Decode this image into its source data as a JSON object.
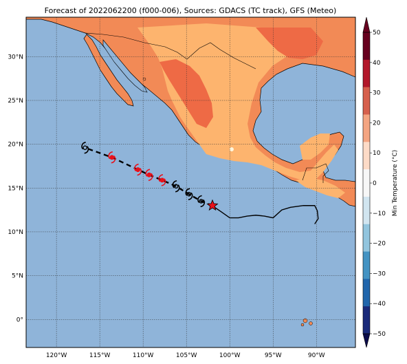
{
  "title": "Forecast of 2022062200 (f000-006), Sources: GDACS (TC track), GFS (Meteo)",
  "map": {
    "lon_range": [
      -123.5,
      -85.5
    ],
    "lat_range": [
      -3.2,
      34.5
    ],
    "lon_ticks": [
      {
        "value": -120,
        "label": "120°W"
      },
      {
        "value": -115,
        "label": "115°W"
      },
      {
        "value": -110,
        "label": "110°W"
      },
      {
        "value": -105,
        "label": "105°W"
      },
      {
        "value": -100,
        "label": "100°W"
      },
      {
        "value": -95,
        "label": "95°W"
      },
      {
        "value": -90,
        "label": "90°W"
      }
    ],
    "lat_ticks": [
      {
        "value": 30,
        "label": "30°N"
      },
      {
        "value": 25,
        "label": "25°N"
      },
      {
        "value": 20,
        "label": "20°N"
      },
      {
        "value": 15,
        "label": "15°N"
      },
      {
        "value": 10,
        "label": "10°N"
      },
      {
        "value": 5,
        "label": "5°N"
      },
      {
        "value": 0,
        "label": "0°"
      }
    ],
    "gridlines": true,
    "ocean_color": "#8fb4d9",
    "land_color": "#f4a261"
  },
  "track": {
    "past_path_lonlat": [
      [
        -101.9,
        12.9
      ],
      [
        -101.0,
        12.3
      ],
      [
        -100.0,
        11.6
      ],
      [
        -99.0,
        11.6
      ],
      [
        -98.0,
        11.8
      ],
      [
        -97.0,
        11.9
      ],
      [
        -96.0,
        11.8
      ],
      [
        -95.0,
        11.6
      ],
      [
        -94.0,
        12.5
      ],
      [
        -93.0,
        12.8
      ],
      [
        -91.5,
        13.0
      ],
      [
        -90.2,
        13.0
      ],
      [
        -89.9,
        12.4
      ],
      [
        -89.8,
        11.5
      ],
      [
        -90.2,
        10.9
      ]
    ],
    "current_position": [
      -102.0,
      13.0
    ],
    "forecast_positions": [
      {
        "lon": -103.3,
        "lat": 13.5,
        "color": "black"
      },
      {
        "lon": -104.7,
        "lat": 14.3,
        "color": "black"
      },
      {
        "lon": -106.2,
        "lat": 15.2,
        "color": "black"
      },
      {
        "lon": -107.8,
        "lat": 15.9,
        "color": "red"
      },
      {
        "lon": -109.3,
        "lat": 16.5,
        "color": "red"
      },
      {
        "lon": -110.6,
        "lat": 17.1,
        "color": "red"
      },
      {
        "lon": -113.6,
        "lat": 18.5,
        "color": "red"
      },
      {
        "lon": -116.7,
        "lat": 19.6,
        "color": "black"
      }
    ]
  },
  "colorbar": {
    "label": "Min Temperature (°C)",
    "ticks": [
      "50",
      "40",
      "30",
      "20",
      "10",
      "0",
      "−10",
      "−20",
      "−30",
      "−40",
      "−50"
    ],
    "colors": [
      "#67001f",
      "#b2182b",
      "#d6604d",
      "#f4a582",
      "#fddbc7",
      "#f7f7f7",
      "#d1e5f0",
      "#92c5de",
      "#4393c3",
      "#2166ac",
      "#1a2a7a"
    ]
  }
}
